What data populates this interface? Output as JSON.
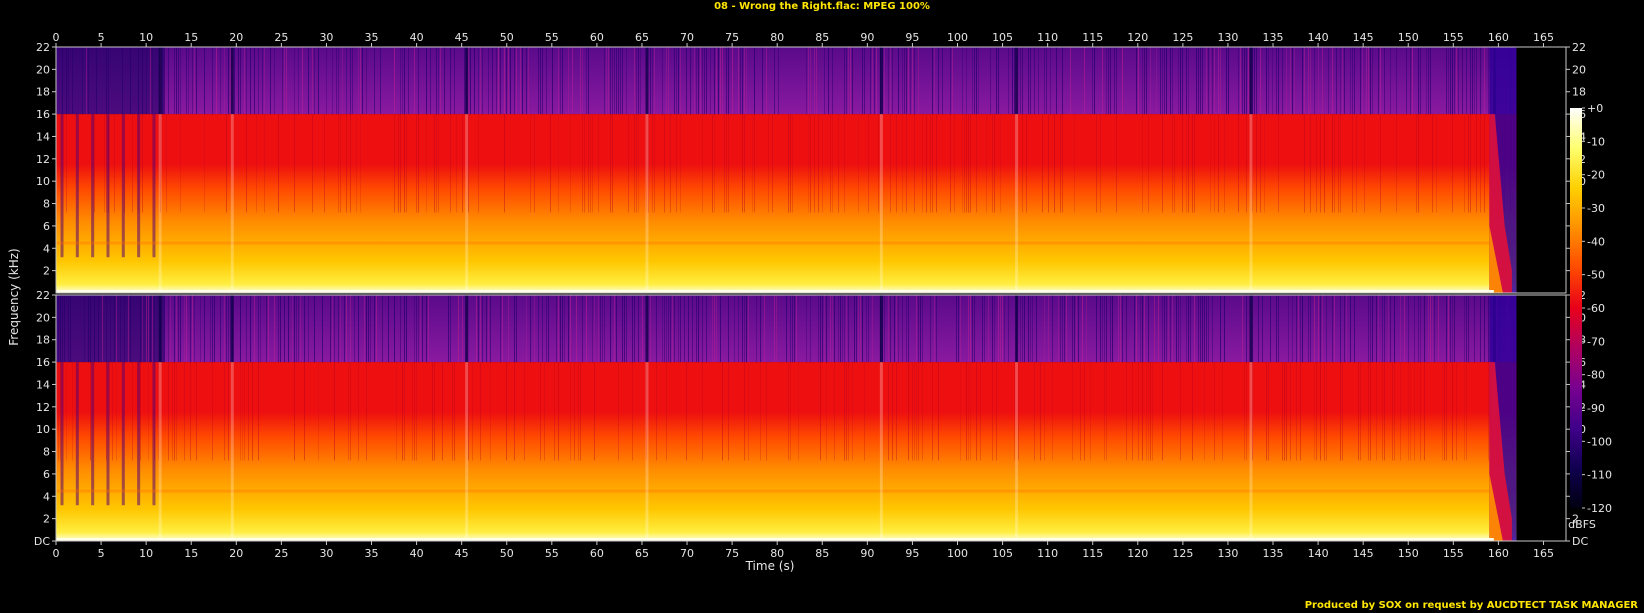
{
  "title": "08 - Wrong the Right.flac: MPEG 100%",
  "footer": "Produced by SOX on request by AUCDTECT TASK MANAGER",
  "chart_data": {
    "type": "heatmap",
    "xlabel": "Time (s)",
    "ylabel": "Frequency (kHz)",
    "xlim": [
      0,
      167.5
    ],
    "audio_end_s": 162,
    "lowpass_cutoff_khz": 16,
    "x_ticks": [
      "0",
      "5",
      "10",
      "15",
      "20",
      "25",
      "30",
      "35",
      "40",
      "45",
      "50",
      "55",
      "60",
      "65",
      "70",
      "75",
      "80",
      "85",
      "90",
      "95",
      "100",
      "105",
      "110",
      "115",
      "120",
      "125",
      "130",
      "135",
      "140",
      "145",
      "150",
      "155",
      "160",
      "165"
    ],
    "y_ticks": [
      "DC",
      "2",
      "4",
      "6",
      "8",
      "10",
      "12",
      "14",
      "16",
      "18",
      "20",
      "22"
    ],
    "colorbar": {
      "label": "dBFS",
      "ticks": [
        "+0",
        "-10",
        "-20",
        "-30",
        "-40",
        "-50",
        "-60",
        "-70",
        "-80",
        "-90",
        "-100",
        "-110",
        "-120"
      ],
      "stops": [
        "#ffffff",
        "#ffff70",
        "#ffd000",
        "#ff9000",
        "#ff4a00",
        "#e8001a",
        "#b00060",
        "#780090",
        "#40008a",
        "#100050",
        "#000010"
      ]
    },
    "channels": [
      {
        "name": "top channel",
        "y_ticks_visible": [
          "2",
          "4",
          "6",
          "8",
          "10",
          "12",
          "14",
          "16",
          "18",
          "20",
          "22"
        ]
      },
      {
        "name": "bottom channel",
        "y_ticks_visible": [
          "DC",
          "2",
          "4",
          "6",
          "8",
          "10",
          "12",
          "14",
          "16",
          "18",
          "20",
          "22"
        ]
      }
    ],
    "transient_events_s": [
      11.5,
      19.5,
      45.5,
      65.5,
      91.5,
      106.5,
      132.5,
      159.5
    ]
  }
}
